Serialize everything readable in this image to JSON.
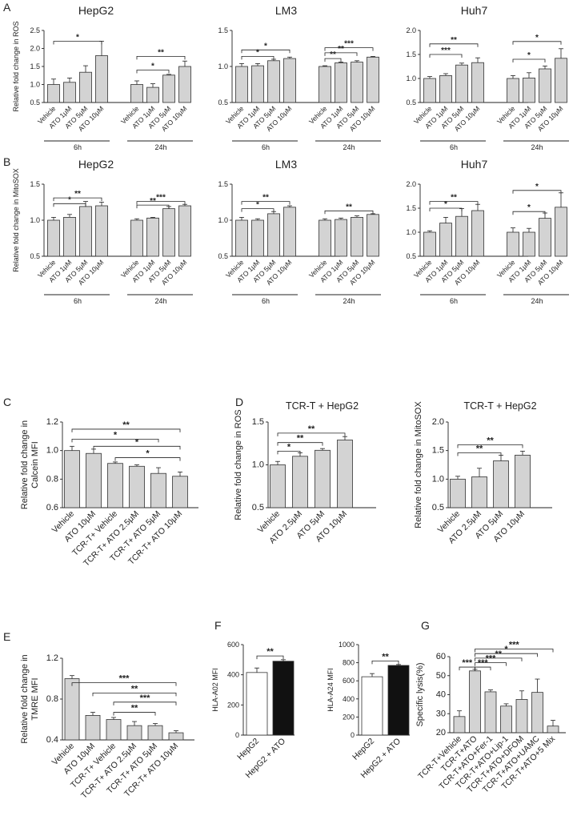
{
  "chart_data": [
    {
      "id": "A1",
      "panel_label": "A",
      "type": "bar",
      "title": "HepG2",
      "ylabel": "Relative fold change in ROS",
      "ylim": [
        0.5,
        2.5
      ],
      "yticks": [
        "0.5",
        "1.0",
        "1.5",
        "2.0",
        "2.5"
      ],
      "groups": [
        {
          "name": "6h",
          "categories": [
            "Vehicle",
            "ATO 1μM",
            "ATO 5μM",
            "ATO 10μM"
          ],
          "values": [
            1.0,
            1.06,
            1.34,
            1.8
          ],
          "errors": [
            0.15,
            0.12,
            0.18,
            0.4
          ]
        },
        {
          "name": "24h",
          "categories": [
            "Vehicle",
            "ATO 1μM",
            "ATO 5μM",
            "ATO 10μM"
          ],
          "values": [
            1.0,
            0.92,
            1.26,
            1.5
          ],
          "errors": [
            0.1,
            0.1,
            0.02,
            0.15
          ]
        }
      ],
      "significance": [
        {
          "g": 0,
          "from": 0,
          "to": 3,
          "level": 2.2,
          "stars": "*"
        },
        {
          "g": 1,
          "from": 0,
          "to": 3,
          "level": 1.78,
          "stars": "**"
        },
        {
          "g": 1,
          "from": 0,
          "to": 2,
          "level": 1.4,
          "stars": "*"
        }
      ]
    },
    {
      "id": "A2",
      "type": "bar",
      "title": "LM3",
      "ylabel": "",
      "ylim": [
        0.5,
        1.5
      ],
      "yticks": [
        "0.5",
        "1.0",
        "1.5"
      ],
      "groups": [
        {
          "name": "6h",
          "categories": [
            "Vehicle",
            "ATO 1μM",
            "ATO 5μM",
            "ATO 10μM"
          ],
          "values": [
            1.0,
            1.01,
            1.08,
            1.11
          ],
          "errors": [
            0.04,
            0.03,
            0.02,
            0.02
          ]
        },
        {
          "name": "24h",
          "categories": [
            "Vehicle",
            "ATO 1μM",
            "ATO 5μM",
            "ATO 10μM"
          ],
          "values": [
            1.0,
            1.05,
            1.06,
            1.13
          ],
          "errors": [
            0.01,
            0.01,
            0.02,
            0.01
          ]
        }
      ],
      "significance": [
        {
          "g": 0,
          "from": 0,
          "to": 3,
          "level": 1.23,
          "stars": "*"
        },
        {
          "g": 0,
          "from": 0,
          "to": 2,
          "level": 1.14,
          "stars": "*"
        },
        {
          "g": 1,
          "from": 0,
          "to": 3,
          "level": 1.26,
          "stars": "***"
        },
        {
          "g": 1,
          "from": 0,
          "to": 2,
          "level": 1.19,
          "stars": "**"
        },
        {
          "g": 1,
          "from": 0,
          "to": 1,
          "level": 1.11,
          "stars": "**"
        }
      ]
    },
    {
      "id": "A3",
      "type": "bar",
      "title": "Huh7",
      "ylabel": "",
      "ylim": [
        0.5,
        2.0
      ],
      "yticks": [
        "0.5",
        "1.0",
        "1.5",
        "2.0"
      ],
      "groups": [
        {
          "name": "6h",
          "categories": [
            "Vehicle",
            "ATO 1μM",
            "ATO 5μM",
            "ATO 10μM"
          ],
          "values": [
            1.0,
            1.06,
            1.28,
            1.33
          ],
          "errors": [
            0.04,
            0.04,
            0.04,
            0.1
          ]
        },
        {
          "name": "24h",
          "categories": [
            "Vehicle",
            "ATO 1μM",
            "ATO 5μM",
            "ATO 10μM"
          ],
          "values": [
            1.0,
            1.01,
            1.2,
            1.42
          ],
          "errors": [
            0.06,
            0.11,
            0.06,
            0.2
          ]
        }
      ],
      "significance": [
        {
          "g": 0,
          "from": 0,
          "to": 3,
          "level": 1.72,
          "stars": "**"
        },
        {
          "g": 0,
          "from": 0,
          "to": 2,
          "level": 1.5,
          "stars": "***"
        },
        {
          "g": 1,
          "from": 0,
          "to": 3,
          "level": 1.77,
          "stars": "*"
        },
        {
          "g": 1,
          "from": 0,
          "to": 2,
          "level": 1.4,
          "stars": "*"
        }
      ]
    },
    {
      "id": "B1",
      "panel_label": "B",
      "type": "bar",
      "title": "HepG2",
      "ylabel": "Relative fold change in MitoSOX",
      "ylim": [
        0.5,
        1.5
      ],
      "yticks": [
        "0.5",
        "1.0",
        "1.5"
      ],
      "groups": [
        {
          "name": "6h",
          "categories": [
            "Vehicle",
            "ATO 1μM",
            "ATO 5μM",
            "ATO 10μM"
          ],
          "values": [
            1.0,
            1.04,
            1.19,
            1.2
          ],
          "errors": [
            0.04,
            0.04,
            0.07,
            0.05
          ]
        },
        {
          "name": "24h",
          "categories": [
            "Vehicle",
            "ATO 1μM",
            "ATO 5μM",
            "ATO 10μM"
          ],
          "values": [
            1.0,
            1.03,
            1.16,
            1.2
          ],
          "errors": [
            0.02,
            0.01,
            0.03,
            0.02
          ]
        }
      ],
      "significance": [
        {
          "g": 0,
          "from": 0,
          "to": 3,
          "level": 1.31,
          "stars": "**"
        },
        {
          "g": 0,
          "from": 0,
          "to": 2,
          "level": 1.23,
          "stars": "*"
        },
        {
          "g": 1,
          "from": 0,
          "to": 3,
          "level": 1.26,
          "stars": "***"
        },
        {
          "g": 1,
          "from": 0,
          "to": 2,
          "level": 1.21,
          "stars": "**"
        }
      ]
    },
    {
      "id": "B2",
      "type": "bar",
      "title": "LM3",
      "ylabel": "",
      "ylim": [
        0.5,
        1.5
      ],
      "yticks": [
        "0.5",
        "1.0",
        "1.5"
      ],
      "groups": [
        {
          "name": "6h",
          "categories": [
            "Vehicle",
            "ATO 1μM",
            "ATO 5μM",
            "ATO 10μM"
          ],
          "values": [
            1.0,
            1.0,
            1.09,
            1.18
          ],
          "errors": [
            0.04,
            0.02,
            0.03,
            0.02
          ]
        },
        {
          "name": "24h",
          "categories": [
            "Vehicle",
            "ATO 1μM",
            "ATO 5μM",
            "ATO 10μM"
          ],
          "values": [
            1.0,
            1.01,
            1.04,
            1.08
          ],
          "errors": [
            0.02,
            0.02,
            0.02,
            0.01
          ]
        }
      ],
      "significance": [
        {
          "g": 0,
          "from": 0,
          "to": 3,
          "level": 1.26,
          "stars": "**"
        },
        {
          "g": 0,
          "from": 0,
          "to": 2,
          "level": 1.16,
          "stars": "*"
        },
        {
          "g": 1,
          "from": 0,
          "to": 3,
          "level": 1.13,
          "stars": "**"
        }
      ]
    },
    {
      "id": "B3",
      "type": "bar",
      "title": "Huh7",
      "ylabel": "",
      "ylim": [
        0.5,
        2.0
      ],
      "yticks": [
        "0.5",
        "1.0",
        "1.5",
        "2.0"
      ],
      "groups": [
        {
          "name": "6h",
          "categories": [
            "Vehicle",
            "ATO 1μM",
            "ATO 5μM",
            "ATO 10μM"
          ],
          "values": [
            1.0,
            1.19,
            1.33,
            1.45
          ],
          "errors": [
            0.03,
            0.12,
            0.16,
            0.13
          ]
        },
        {
          "name": "24h",
          "categories": [
            "Vehicle",
            "ATO 1μM",
            "ATO 5μM",
            "ATO 10μM"
          ],
          "values": [
            1.0,
            1.0,
            1.29,
            1.52
          ],
          "errors": [
            0.09,
            0.08,
            0.11,
            0.3
          ]
        }
      ],
      "significance": [
        {
          "g": 0,
          "from": 0,
          "to": 3,
          "level": 1.64,
          "stars": "**"
        },
        {
          "g": 0,
          "from": 0,
          "to": 2,
          "level": 1.5,
          "stars": "*"
        },
        {
          "g": 1,
          "from": 0,
          "to": 3,
          "level": 1.87,
          "stars": "*"
        },
        {
          "g": 1,
          "from": 0,
          "to": 2,
          "level": 1.43,
          "stars": "*"
        }
      ]
    },
    {
      "id": "C",
      "panel_label": "C",
      "type": "bar",
      "title": "",
      "ylabel": "Relative fold change in Calcein MFI",
      "ylim": [
        0.6,
        1.2
      ],
      "yticks": [
        "0.6",
        "0.8",
        "1.0",
        "1.2"
      ],
      "categories": [
        "Vehicle",
        "ATO 10μM",
        "TCR-T+ Vehicle",
        "TCR-T+ ATO 2.5μM",
        "TCR-T+ ATO 5μM",
        "TCR-T+ ATO 10μM"
      ],
      "values": [
        1.0,
        0.98,
        0.91,
        0.89,
        0.84,
        0.82
      ],
      "errors": [
        0.03,
        0.03,
        0.01,
        0.01,
        0.04,
        0.03
      ],
      "significance": [
        {
          "from": 0,
          "to": 5,
          "level": 1.15,
          "stars": "**"
        },
        {
          "from": 0,
          "to": 4,
          "level": 1.08,
          "stars": "*"
        },
        {
          "from": 1,
          "to": 5,
          "level": 1.03,
          "stars": "*"
        },
        {
          "from": 2,
          "to": 5,
          "level": 0.95,
          "stars": "*"
        }
      ]
    },
    {
      "id": "D1",
      "panel_label": "D",
      "type": "bar",
      "title": "TCR-T + HepG2",
      "ylabel": "Relative fold change in ROS",
      "ylim": [
        0.5,
        1.5
      ],
      "yticks": [
        "0.5",
        "1.0",
        "1.5"
      ],
      "categories": [
        "Vehicle",
        "ATO 2.5μM",
        "ATO 5μM",
        "ATO 10μM"
      ],
      "values": [
        1.0,
        1.1,
        1.17,
        1.29
      ],
      "errors": [
        0.04,
        0.04,
        0.02,
        0.04
      ],
      "significance": [
        {
          "from": 0,
          "to": 3,
          "level": 1.37,
          "stars": "**"
        },
        {
          "from": 0,
          "to": 2,
          "level": 1.26,
          "stars": "**"
        },
        {
          "from": 0,
          "to": 1,
          "level": 1.16,
          "stars": "*"
        }
      ]
    },
    {
      "id": "D2",
      "type": "bar",
      "title": "TCR-T + HepG2",
      "ylabel": "Relative fold change in MitoSOX",
      "ylim": [
        0.5,
        2.0
      ],
      "yticks": [
        "0.5",
        "1.0",
        "1.5",
        "2.0"
      ],
      "categories": [
        "Vehicle",
        "ATO 2.5μM",
        "ATO 5μM",
        "ATO 10μM"
      ],
      "values": [
        1.0,
        1.04,
        1.32,
        1.42
      ],
      "errors": [
        0.05,
        0.15,
        0.1,
        0.07
      ],
      "significance": [
        {
          "from": 0,
          "to": 3,
          "level": 1.6,
          "stars": "**"
        },
        {
          "from": 0,
          "to": 2,
          "level": 1.46,
          "stars": "**"
        }
      ]
    },
    {
      "id": "E",
      "panel_label": "E",
      "type": "bar",
      "title": "",
      "ylabel": "Relative fold change in TMRE MFI",
      "ylim": [
        0.4,
        1.2
      ],
      "yticks": [
        "0.4",
        "0.8",
        "1.2"
      ],
      "categories": [
        "Vehicle",
        "ATO 10μM",
        "TCR-T+ Vehicle",
        "TCR-T+ ATO 2.5μM",
        "TCR-T+ ATO 5μM",
        "TCR-T+ ATO 10μM"
      ],
      "values": [
        1.0,
        0.64,
        0.6,
        0.54,
        0.54,
        0.47
      ],
      "errors": [
        0.03,
        0.03,
        0.02,
        0.04,
        0.02,
        0.02
      ],
      "significance": [
        {
          "from": 0,
          "to": 5,
          "level": 0.96,
          "stars": "***"
        },
        {
          "from": 1,
          "to": 5,
          "level": 0.86,
          "stars": "**"
        },
        {
          "from": 2,
          "to": 5,
          "level": 0.77,
          "stars": "***"
        },
        {
          "from": 2,
          "to": 4,
          "level": 0.67,
          "stars": "**"
        }
      ]
    },
    {
      "id": "F1",
      "panel_label": "F",
      "type": "bar",
      "title": "",
      "ylabel": "HLA-A02 MFI",
      "ylim": [
        0,
        600
      ],
      "yticks": [
        "0",
        "200",
        "400",
        "600"
      ],
      "categories": [
        "HepG2",
        "HepG2 + ATO"
      ],
      "values": [
        415,
        490
      ],
      "errors": [
        30,
        10
      ],
      "fills": [
        "white",
        "dark"
      ],
      "significance": [
        {
          "from": 0,
          "to": 1,
          "level": 525,
          "stars": "**"
        }
      ]
    },
    {
      "id": "F2",
      "type": "bar",
      "title": "",
      "ylabel": "HLA-A24 MFI",
      "ylim": [
        0,
        1000
      ],
      "yticks": [
        "0",
        "200",
        "400",
        "600",
        "800",
        "1000"
      ],
      "categories": [
        "HepG2",
        "HepG2 + ATO"
      ],
      "values": [
        645,
        770
      ],
      "errors": [
        35,
        10
      ],
      "fills": [
        "white",
        "dark"
      ],
      "significance": [
        {
          "from": 0,
          "to": 1,
          "level": 820,
          "stars": "**"
        }
      ]
    },
    {
      "id": "G",
      "panel_label": "G",
      "type": "bar",
      "title": "",
      "ylabel": "Specific lysis(%)",
      "ylim": [
        20,
        60
      ],
      "yticks": [
        "20",
        "30",
        "40",
        "50",
        "60"
      ],
      "categories": [
        "TCR-T+Vehicle",
        "TCR-T+ATO",
        "TCR-T+ATO+Fer-1",
        "TCR-T+ATO+Lip-1",
        "TCR-T+ATO+DFOM",
        "TCR-T+ATO+UAMC",
        "TCR-T+ATO+5 Mix"
      ],
      "values": [
        28.5,
        52.5,
        41.5,
        34,
        37.5,
        41.2,
        23.5
      ],
      "errors": [
        3,
        0.8,
        1,
        1.2,
        4.5,
        7,
        3
      ],
      "significance": [
        {
          "from": 0,
          "to": 1,
          "level": 54.5,
          "stars": "***"
        },
        {
          "from": 1,
          "to": 2,
          "level": 54.5,
          "stars": "***"
        },
        {
          "from": 1,
          "to": 3,
          "level": 56.8,
          "stars": "***"
        },
        {
          "from": 1,
          "to": 4,
          "level": 59.2,
          "stars": "**"
        },
        {
          "from": 1,
          "to": 5,
          "level": 61.6,
          "stars": "*"
        },
        {
          "from": 1,
          "to": 6,
          "level": 64,
          "stars": "***"
        }
      ]
    }
  ]
}
